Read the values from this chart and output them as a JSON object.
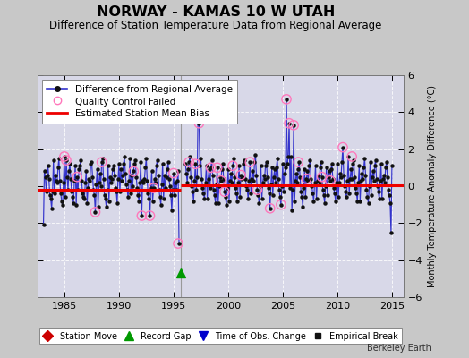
{
  "title": "NORWAY - KAMAS 10 W UTAH",
  "subtitle": "Difference of Station Temperature Data from Regional Average",
  "ylabel": "Monthly Temperature Anomaly Difference (°C)",
  "xlim": [
    1982.5,
    2016.0
  ],
  "ylim": [
    -6,
    6
  ],
  "yticks": [
    -6,
    -4,
    -2,
    0,
    2,
    4,
    6
  ],
  "xticks": [
    1985,
    1990,
    1995,
    2000,
    2005,
    2010,
    2015
  ],
  "bg_color": "#c8c8c8",
  "plot_bg_color": "#d8d8e8",
  "line_color": "#3333cc",
  "marker_color": "#111111",
  "bias_color": "#ee0000",
  "qc_color": "#ff77bb",
  "gap_line_x": 1995.58,
  "record_gap_x": 1995.58,
  "record_gap_y": -4.7,
  "bias_y1": -0.2,
  "bias_y2": 0.05,
  "bias_x1_start": 1982.5,
  "bias_x1_end": 1995.58,
  "bias_x2_start": 1995.58,
  "bias_x2_end": 2016.0,
  "data_x": [
    1983.042,
    1983.125,
    1983.208,
    1983.292,
    1983.375,
    1983.458,
    1983.542,
    1983.625,
    1983.708,
    1983.792,
    1983.875,
    1983.958,
    1984.042,
    1984.125,
    1984.208,
    1984.292,
    1984.375,
    1984.458,
    1984.542,
    1984.625,
    1984.708,
    1984.792,
    1984.875,
    1984.958,
    1985.042,
    1985.125,
    1985.208,
    1985.292,
    1985.375,
    1985.458,
    1985.542,
    1985.625,
    1985.708,
    1985.792,
    1985.875,
    1985.958,
    1986.042,
    1986.125,
    1986.208,
    1986.292,
    1986.375,
    1986.458,
    1986.542,
    1986.625,
    1986.708,
    1986.792,
    1986.875,
    1986.958,
    1987.042,
    1987.125,
    1987.208,
    1987.292,
    1987.375,
    1987.458,
    1987.542,
    1987.625,
    1987.708,
    1987.792,
    1987.875,
    1987.958,
    1988.042,
    1988.125,
    1988.208,
    1988.292,
    1988.375,
    1988.458,
    1988.542,
    1988.625,
    1988.708,
    1988.792,
    1988.875,
    1988.958,
    1989.042,
    1989.125,
    1989.208,
    1989.292,
    1989.375,
    1989.458,
    1989.542,
    1989.625,
    1989.708,
    1989.792,
    1989.875,
    1989.958,
    1990.042,
    1990.125,
    1990.208,
    1990.292,
    1990.375,
    1990.458,
    1990.542,
    1990.625,
    1990.708,
    1990.792,
    1990.875,
    1990.958,
    1991.042,
    1991.125,
    1991.208,
    1991.292,
    1991.375,
    1991.458,
    1991.542,
    1991.625,
    1991.708,
    1991.792,
    1991.875,
    1991.958,
    1992.042,
    1992.125,
    1992.208,
    1992.292,
    1992.375,
    1992.458,
    1992.542,
    1992.625,
    1992.708,
    1992.792,
    1992.875,
    1992.958,
    1993.042,
    1993.125,
    1993.208,
    1993.292,
    1993.375,
    1993.458,
    1993.542,
    1993.625,
    1993.708,
    1993.792,
    1993.875,
    1993.958,
    1994.042,
    1994.125,
    1994.208,
    1994.292,
    1994.375,
    1994.458,
    1994.542,
    1994.625,
    1994.708,
    1994.792,
    1994.875,
    1994.958,
    1995.042,
    1995.125,
    1995.208,
    1995.292,
    1995.375,
    1995.458,
    1996.042,
    1996.125,
    1996.208,
    1996.292,
    1996.375,
    1996.458,
    1996.542,
    1996.625,
    1996.708,
    1996.792,
    1996.875,
    1996.958,
    1997.042,
    1997.125,
    1997.208,
    1997.292,
    1997.375,
    1997.458,
    1997.542,
    1997.625,
    1997.708,
    1997.792,
    1997.875,
    1997.958,
    1998.042,
    1998.125,
    1998.208,
    1998.292,
    1998.375,
    1998.458,
    1998.542,
    1998.625,
    1998.708,
    1998.792,
    1998.875,
    1998.958,
    1999.042,
    1999.125,
    1999.208,
    1999.292,
    1999.375,
    1999.458,
    1999.542,
    1999.625,
    1999.708,
    1999.792,
    1999.875,
    1999.958,
    2000.042,
    2000.125,
    2000.208,
    2000.292,
    2000.375,
    2000.458,
    2000.542,
    2000.625,
    2000.708,
    2000.792,
    2000.875,
    2000.958,
    2001.042,
    2001.125,
    2001.208,
    2001.292,
    2001.375,
    2001.458,
    2001.542,
    2001.625,
    2001.708,
    2001.792,
    2001.875,
    2001.958,
    2002.042,
    2002.125,
    2002.208,
    2002.292,
    2002.375,
    2002.458,
    2002.542,
    2002.625,
    2002.708,
    2002.792,
    2002.875,
    2002.958,
    2003.042,
    2003.125,
    2003.208,
    2003.292,
    2003.375,
    2003.458,
    2003.542,
    2003.625,
    2003.708,
    2003.792,
    2003.875,
    2003.958,
    2004.042,
    2004.125,
    2004.208,
    2004.292,
    2004.375,
    2004.458,
    2004.542,
    2004.625,
    2004.708,
    2004.792,
    2004.875,
    2004.958,
    2005.042,
    2005.125,
    2005.208,
    2005.292,
    2005.375,
    2005.458,
    2005.542,
    2005.625,
    2005.708,
    2005.792,
    2005.875,
    2005.958,
    2006.042,
    2006.125,
    2006.208,
    2006.292,
    2006.375,
    2006.458,
    2006.542,
    2006.625,
    2006.708,
    2006.792,
    2006.875,
    2006.958,
    2007.042,
    2007.125,
    2007.208,
    2007.292,
    2007.375,
    2007.458,
    2007.542,
    2007.625,
    2007.708,
    2007.792,
    2007.875,
    2007.958,
    2008.042,
    2008.125,
    2008.208,
    2008.292,
    2008.375,
    2008.458,
    2008.542,
    2008.625,
    2008.708,
    2008.792,
    2008.875,
    2008.958,
    2009.042,
    2009.125,
    2009.208,
    2009.292,
    2009.375,
    2009.458,
    2009.542,
    2009.625,
    2009.708,
    2009.792,
    2009.875,
    2009.958,
    2010.042,
    2010.125,
    2010.208,
    2010.292,
    2010.375,
    2010.458,
    2010.542,
    2010.625,
    2010.708,
    2010.792,
    2010.875,
    2010.958,
    2011.042,
    2011.125,
    2011.208,
    2011.292,
    2011.375,
    2011.458,
    2011.542,
    2011.625,
    2011.708,
    2011.792,
    2011.875,
    2011.958,
    2012.042,
    2012.125,
    2012.208,
    2012.292,
    2012.375,
    2012.458,
    2012.542,
    2012.625,
    2012.708,
    2012.792,
    2012.875,
    2012.958,
    2013.042,
    2013.125,
    2013.208,
    2013.292,
    2013.375,
    2013.458,
    2013.542,
    2013.625,
    2013.708,
    2013.792,
    2013.875,
    2013.958,
    2014.042,
    2014.125,
    2014.208,
    2014.292,
    2014.375,
    2014.458,
    2014.542,
    2014.625,
    2014.708,
    2014.792,
    2014.875,
    2014.958
  ],
  "data_y": [
    -2.1,
    0.8,
    0.5,
    -0.3,
    0.6,
    1.1,
    0.4,
    -0.5,
    -0.7,
    -1.2,
    -0.3,
    1.4,
    -0.4,
    0.6,
    0.3,
    0.2,
    1.0,
    1.5,
    0.3,
    -0.4,
    -0.8,
    -1.0,
    0.2,
    1.6,
    -0.6,
    1.4,
    0.5,
    -0.2,
    0.8,
    1.2,
    0.4,
    -0.3,
    -0.6,
    -0.9,
    0.3,
    1.1,
    -1.0,
    0.5,
    -0.2,
    0.9,
    1.1,
    1.4,
    0.3,
    -0.4,
    -0.6,
    -0.7,
    0.2,
    0.8,
    -0.9,
    -0.1,
    0.4,
    0.3,
    1.2,
    1.3,
    0.5,
    -0.2,
    -0.5,
    -1.4,
    0.1,
    0.9,
    -1.1,
    0.2,
    0.7,
    0.0,
    1.3,
    1.5,
    0.4,
    -0.5,
    -0.7,
    -1.1,
    -0.2,
    1.1,
    -0.8,
    0.5,
    0.2,
    0.4,
    0.9,
    1.1,
    0.6,
    -0.1,
    -0.3,
    -0.9,
    0.4,
    1.2,
    -0.3,
    0.9,
    0.3,
    0.6,
    1.2,
    1.6,
    0.7,
    0.1,
    -0.2,
    -0.6,
    0.3,
    1.5,
    -0.4,
    0.6,
    0.0,
    0.8,
    1.2,
    1.4,
    0.5,
    -0.1,
    -0.5,
    -0.8,
    0.2,
    1.3,
    -1.6,
    0.3,
    0.2,
    0.4,
    1.0,
    1.5,
    0.3,
    -0.4,
    -0.7,
    -1.6,
    -0.1,
    0.8,
    -0.8,
    -0.1,
    0.4,
    0.2,
    1.1,
    1.4,
    0.6,
    -0.2,
    -0.6,
    -1.0,
    0.1,
    1.2,
    -0.7,
    0.6,
    -0.1,
    0.5,
    0.9,
    1.3,
    0.4,
    -0.0,
    -0.5,
    -1.3,
    -0.2,
    0.7,
    -0.5,
    0.2,
    -0.2,
    0.3,
    0.8,
    -3.1,
    1.2,
    0.7,
    0.2,
    0.9,
    1.3,
    1.6,
    0.5,
    -0.0,
    -0.3,
    -0.8,
    0.3,
    1.2,
    -0.2,
    0.5,
    4.6,
    3.4,
    1.1,
    1.5,
    0.4,
    -0.1,
    -0.4,
    -0.7,
    0.2,
    1.1,
    -0.7,
    0.4,
    0.9,
    -0.1,
    1.0,
    1.4,
    0.6,
    -0.2,
    -0.5,
    -0.9,
    0.1,
    1.0,
    -0.9,
    0.0,
    0.5,
    0.3,
    0.9,
    1.2,
    0.4,
    -0.3,
    -0.6,
    -1.0,
    -0.1,
    0.9,
    -0.8,
    0.3,
    0.7,
    0.2,
    1.1,
    1.5,
    0.5,
    -0.1,
    -0.4,
    -0.8,
    0.2,
    1.1,
    -0.6,
    0.6,
    0.4,
    0.5,
    1.2,
    1.4,
    0.4,
    -0.0,
    -0.2,
    -0.7,
    0.3,
    1.3,
    -0.4,
    0.4,
    0.8,
    0.3,
    1.3,
    1.7,
    0.6,
    -0.2,
    -0.5,
    -0.9,
    0.0,
    1.1,
    -0.7,
    0.2,
    0.6,
    0.4,
    1.1,
    1.3,
    0.5,
    -0.1,
    -0.4,
    -1.2,
    0.1,
    1.0,
    -0.5,
    0.5,
    0.9,
    0.2,
    1.0,
    1.5,
    0.4,
    -0.2,
    -0.6,
    -1.0,
    0.0,
    1.2,
    -0.3,
    0.7,
    1.0,
    4.7,
    1.2,
    1.6,
    3.4,
    -0.1,
    1.6,
    -1.3,
    -0.2,
    3.3,
    -0.8,
    0.3,
    0.7,
    0.2,
    0.9,
    1.3,
    0.5,
    -0.3,
    -0.6,
    -1.1,
    -0.1,
    0.9,
    -0.6,
    0.4,
    0.8,
    0.3,
    1.1,
    1.4,
    0.4,
    -0.0,
    -0.4,
    -0.8,
    0.2,
    1.1,
    -0.7,
    0.3,
    0.6,
    0.2,
    1.0,
    1.3,
    0.5,
    -0.2,
    -0.5,
    -0.9,
    0.0,
    1.0,
    -0.5,
    0.5,
    0.8,
    0.3,
    0.9,
    1.2,
    0.4,
    -0.1,
    -0.4,
    -0.8,
    0.2,
    1.2,
    -0.6,
    0.2,
    0.7,
    0.5,
    1.3,
    2.1,
    0.6,
    -0.0,
    -0.3,
    -0.6,
    0.3,
    1.6,
    -0.4,
    0.4,
    0.9,
    0.4,
    1.2,
    1.4,
    0.5,
    -0.1,
    -0.4,
    -0.8,
    0.2,
    1.1,
    -0.8,
    0.3,
    0.7,
    0.4,
    1.0,
    1.5,
    0.6,
    -0.2,
    -0.6,
    -0.9,
    0.0,
    1.3,
    -0.5,
    0.5,
    0.8,
    0.3,
    1.1,
    1.4,
    0.4,
    -0.0,
    -0.3,
    -0.7,
    0.3,
    1.2,
    -0.7,
    0.4,
    0.6,
    0.2,
    1.0,
    1.3,
    0.5,
    -0.2,
    -0.5,
    -0.9,
    -2.5,
    1.1
  ],
  "qc_x": [
    1984.958,
    1985.125,
    1986.125,
    1987.792,
    1988.375,
    1991.292,
    1992.042,
    1992.792,
    1993.125,
    1994.958,
    1995.375,
    1996.375,
    1996.958,
    1997.208,
    1997.292,
    1998.375,
    1998.958,
    1999.292,
    1999.625,
    2000.375,
    2001.125,
    2001.958,
    2002.625,
    2003.792,
    2004.792,
    2005.292,
    2005.542,
    2005.958,
    2006.375,
    2007.125,
    2008.542,
    2009.292,
    2010.458,
    2011.292
  ],
  "qc_y": [
    1.6,
    1.4,
    0.5,
    -1.4,
    1.3,
    0.8,
    -1.6,
    -1.6,
    -0.1,
    0.7,
    -3.1,
    1.3,
    1.2,
    4.6,
    3.4,
    1.0,
    1.0,
    0.3,
    -0.3,
    1.1,
    0.6,
    1.3,
    -0.2,
    -1.2,
    -1.0,
    4.7,
    3.4,
    3.3,
    1.3,
    0.4,
    0.5,
    0.3,
    2.1,
    1.6
  ],
  "berkeley_earth_text": "Berkeley Earth"
}
